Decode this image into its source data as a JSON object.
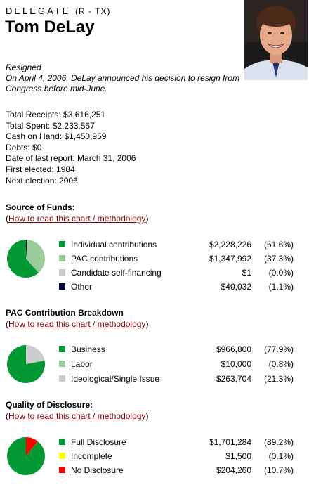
{
  "header": {
    "role": "DELEGATE",
    "party": "(R - TX)",
    "name": "Tom DeLay",
    "photo_alt": "portrait"
  },
  "status": {
    "label": "Resigned",
    "note": "On April 4, 2006, DeLay announced his decision to resign from Congress before mid-June."
  },
  "stats": [
    "Total Receipts: $3,616,251",
    "Total Spent: $2,233,567",
    "Cash on Hand: $1,450,959",
    "Debts: $0",
    "Date of last report: March 31, 2006",
    "First elected: 1984",
    "Next election: 2006"
  ],
  "sections": [
    {
      "title": "Source of Funds:",
      "link_text": "How to read this chart / methodology",
      "items": [
        {
          "label": "Individual contributions",
          "amount": "$2,228,226",
          "pct": "(61.6%)",
          "value": 61.6,
          "color": "#009933"
        },
        {
          "label": "PAC contributions",
          "amount": "$1,347,992",
          "pct": "(37.3%)",
          "value": 37.3,
          "color": "#99cc99"
        },
        {
          "label": "Candidate self-financing",
          "amount": "$1",
          "pct": "(0.0%)",
          "value": 0.0,
          "color": "#cccccc"
        },
        {
          "label": "Other",
          "amount": "$40,032",
          "pct": "(1.1%)",
          "value": 1.1,
          "color": "#000033"
        }
      ]
    },
    {
      "title": "PAC Contribution Breakdown",
      "link_text": "How to read this chart / methodology",
      "items": [
        {
          "label": "Business",
          "amount": "$966,800",
          "pct": "(77.9%)",
          "value": 77.9,
          "color": "#009933"
        },
        {
          "label": "Labor",
          "amount": "$10,000",
          "pct": "(0.8%)",
          "value": 0.8,
          "color": "#99cc99"
        },
        {
          "label": "Ideological/Single Issue",
          "amount": "$263,704",
          "pct": "(21.3%)",
          "value": 21.3,
          "color": "#cccccc"
        }
      ]
    },
    {
      "title": "Quality of Disclosure:",
      "link_text": "How to read this chart / methodology",
      "items": [
        {
          "label": "Full Disclosure",
          "amount": "$1,701,284",
          "pct": "(89.2%)",
          "value": 89.2,
          "color": "#009933"
        },
        {
          "label": "Incomplete",
          "amount": "$1,500",
          "pct": "(0.1%)",
          "value": 0.1,
          "color": "#ffff00"
        },
        {
          "label": "No Disclosure",
          "amount": "$204,260",
          "pct": "(10.7%)",
          "value": 10.7,
          "color": "#ff0000"
        }
      ]
    }
  ]
}
